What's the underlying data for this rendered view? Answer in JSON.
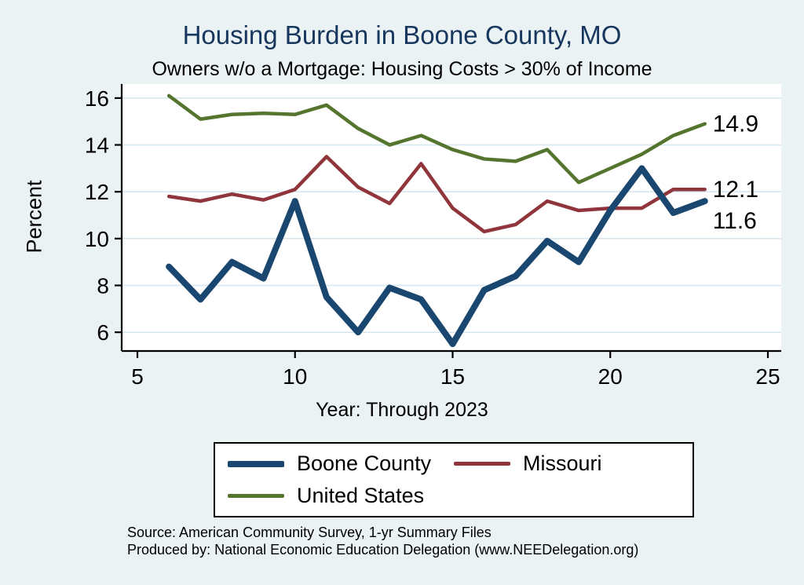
{
  "page": {
    "background": "#eaf2f3",
    "title_color": "#17365d",
    "source_line1": "Source: American Community Survey, 1-yr Summary Files",
    "source_line2": "Produced by: National Economic Education Delegation (www.NEEDelegation.org)"
  },
  "chart_data": {
    "type": "line",
    "title": "Housing Burden in Boone County, MO",
    "subtitle": "Owners w/o a Mortgage: Housing Costs > 30% of Income",
    "xlabel": "Year: Through 2023",
    "ylabel": "Percent",
    "x": [
      6,
      7,
      8,
      9,
      10,
      11,
      12,
      13,
      14,
      15,
      16,
      17,
      18,
      19,
      20,
      21,
      22,
      23
    ],
    "xticks": [
      5,
      10,
      15,
      20,
      25
    ],
    "yticks": [
      6,
      8,
      10,
      12,
      14,
      16
    ],
    "xlim": [
      5,
      25
    ],
    "ylim": [
      5.2,
      16.6
    ],
    "grid": "horizontal",
    "grid_color": "#d7e6ef",
    "plot_background": "#ffffff",
    "legend_position": "bottom",
    "series": [
      {
        "name": "Boone County",
        "color": "#1a476f",
        "width": 8,
        "end_label": "11.6",
        "values": [
          8.8,
          7.4,
          9.0,
          8.3,
          11.6,
          7.5,
          6.0,
          7.9,
          7.4,
          5.5,
          7.8,
          8.4,
          9.9,
          9.0,
          11.2,
          13.0,
          11.1,
          11.6
        ]
      },
      {
        "name": "Missouri",
        "color": "#90353b",
        "width": 4.5,
        "end_label": "12.1",
        "values": [
          11.8,
          11.6,
          11.9,
          11.65,
          12.1,
          13.5,
          12.2,
          11.5,
          13.2,
          11.3,
          10.3,
          10.6,
          11.6,
          11.2,
          11.3,
          11.3,
          12.1,
          12.1
        ]
      },
      {
        "name": "United States",
        "color": "#55752f",
        "width": 4.5,
        "end_label": "14.9",
        "values": [
          16.1,
          15.1,
          15.3,
          15.35,
          15.3,
          15.7,
          14.7,
          14.0,
          14.4,
          13.8,
          13.4,
          13.3,
          13.8,
          12.4,
          13.0,
          13.6,
          14.4,
          14.9
        ]
      }
    ]
  }
}
